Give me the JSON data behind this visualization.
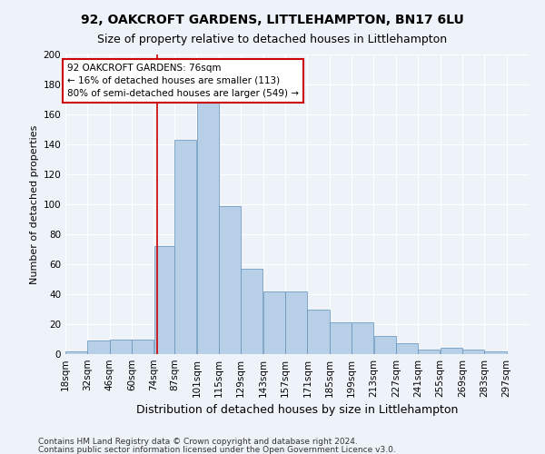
{
  "title": "92, OAKCROFT GARDENS, LITTLEHAMPTON, BN17 6LU",
  "subtitle": "Size of property relative to detached houses in Littlehampton",
  "xlabel": "Distribution of detached houses by size in Littlehampton",
  "ylabel": "Number of detached properties",
  "footnote1": "Contains HM Land Registry data © Crown copyright and database right 2024.",
  "footnote2": "Contains public sector information licensed under the Open Government Licence v3.0.",
  "bin_labels": [
    "18sqm",
    "32sqm",
    "46sqm",
    "60sqm",
    "74sqm",
    "87sqm",
    "101sqm",
    "115sqm",
    "129sqm",
    "143sqm",
    "157sqm",
    "171sqm",
    "185sqm",
    "199sqm",
    "213sqm",
    "227sqm",
    "241sqm",
    "255sqm",
    "269sqm",
    "283sqm",
    "297sqm"
  ],
  "label_nums": [
    18,
    32,
    46,
    60,
    74,
    87,
    101,
    115,
    129,
    143,
    157,
    171,
    185,
    199,
    213,
    227,
    241,
    255,
    269,
    283,
    297
  ],
  "bar_values": [
    2,
    9,
    10,
    10,
    72,
    143,
    168,
    99,
    57,
    42,
    42,
    30,
    21,
    21,
    12,
    7,
    3,
    4,
    3,
    2
  ],
  "bar_color": "#b8cfe8",
  "bar_edge_color": "#6090b8",
  "property_line_x": 76,
  "annotation_text": "92 OAKCROFT GARDENS: 76sqm\n← 16% of detached houses are smaller (113)\n80% of semi-detached houses are larger (549) →",
  "annotation_box_color": "#ffffff",
  "annotation_box_edge": "#cc0000",
  "property_line_color": "#cc0000",
  "ylim": [
    0,
    200
  ],
  "yticks": [
    0,
    20,
    40,
    60,
    80,
    100,
    120,
    140,
    160,
    180,
    200
  ],
  "background_color": "#eef2f9",
  "grid_color": "#ffffff",
  "title_fontsize": 10,
  "subtitle_fontsize": 9,
  "xlabel_fontsize": 9,
  "ylabel_fontsize": 8,
  "tick_fontsize": 7.5,
  "annotation_fontsize": 7.5,
  "footnote_fontsize": 6.5
}
